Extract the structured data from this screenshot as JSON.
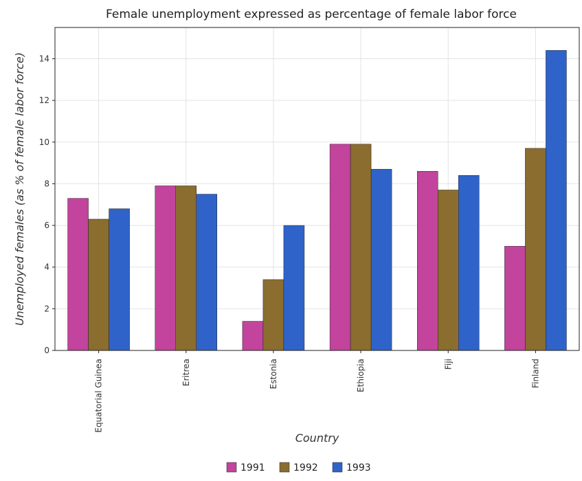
{
  "chart_data": {
    "type": "bar",
    "title": "Female unemployment expressed as percentage of female labor force",
    "xlabel": "Country",
    "ylabel": "Unemployed females (as % of female labor force)",
    "categories": [
      "Equatorial Guinea",
      "Eritrea",
      "Estonia",
      "Ethiopia",
      "Fiji",
      "Finland"
    ],
    "series": [
      {
        "name": "1991",
        "color": "#c2449c",
        "values": [
          7.3,
          7.9,
          1.4,
          9.9,
          8.6,
          5.0
        ]
      },
      {
        "name": "1992",
        "color": "#8a6d2f",
        "values": [
          6.3,
          7.9,
          3.4,
          9.9,
          7.7,
          9.7
        ]
      },
      {
        "name": "1993",
        "color": "#2f63c9",
        "values": [
          6.8,
          7.5,
          6.0,
          8.7,
          8.4,
          14.4
        ]
      }
    ],
    "ylim": [
      0,
      15.5
    ],
    "yticks": [
      0,
      2,
      4,
      6,
      8,
      10,
      12,
      14
    ],
    "grid": true,
    "legend": "bottom-center"
  }
}
